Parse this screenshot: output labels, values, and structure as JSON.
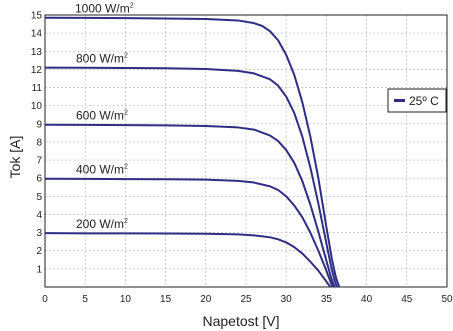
{
  "chart_data": {
    "type": "line",
    "xlabel": "Napetost [V]",
    "ylabel": "Tok [A]",
    "xlim": [
      0,
      50
    ],
    "ylim": [
      0,
      15
    ],
    "x_ticks": [
      0,
      5,
      10,
      15,
      20,
      25,
      30,
      35,
      40,
      45,
      50
    ],
    "y_ticks": [
      1,
      2,
      3,
      4,
      5,
      6,
      7,
      8,
      9,
      10,
      11,
      12,
      13,
      14,
      15
    ],
    "grid": true,
    "legend": {
      "position": "right",
      "entries": [
        "25º C"
      ]
    },
    "colors": {
      "line": "#2e2e86",
      "grid": "#bdbdbd",
      "axis": "#222222"
    },
    "series": [
      {
        "irradiance_label": "1000 W/m",
        "label_superscript": "2",
        "x": [
          0,
          5,
          10,
          15,
          20,
          24,
          26,
          27,
          28,
          29,
          30,
          31,
          32,
          33,
          34,
          35,
          35.7,
          36.2,
          36.6
        ],
        "y": [
          14.85,
          14.84,
          14.83,
          14.81,
          14.78,
          14.7,
          14.55,
          14.4,
          14.1,
          13.6,
          12.8,
          11.7,
          10.2,
          8.3,
          6.0,
          3.3,
          1.5,
          0.5,
          0
        ]
      },
      {
        "irradiance_label": "800 W/m",
        "label_superscript": "2",
        "x": [
          0,
          5,
          10,
          15,
          20,
          24,
          26,
          28,
          29,
          30,
          31,
          32,
          33,
          34,
          35,
          35.6,
          36.0,
          36.3
        ],
        "y": [
          12.1,
          12.09,
          12.08,
          12.06,
          12.02,
          11.92,
          11.78,
          11.45,
          11.1,
          10.5,
          9.6,
          8.3,
          6.6,
          4.6,
          2.4,
          1.1,
          0.4,
          0
        ]
      },
      {
        "irradiance_label": "600 W/m",
        "label_superscript": "2",
        "x": [
          0,
          5,
          10,
          15,
          20,
          24,
          26,
          28,
          29,
          30,
          31,
          32,
          33,
          34,
          35,
          35.6,
          36.0
        ],
        "y": [
          8.95,
          8.94,
          8.93,
          8.91,
          8.88,
          8.8,
          8.68,
          8.35,
          8.05,
          7.55,
          6.85,
          5.85,
          4.55,
          3.05,
          1.45,
          0.5,
          0
        ]
      },
      {
        "irradiance_label": "400 W/m",
        "label_superscript": "2",
        "x": [
          0,
          5,
          10,
          15,
          20,
          24,
          26,
          28,
          29,
          30,
          31,
          32,
          33,
          34,
          35,
          35.5,
          35.8
        ],
        "y": [
          5.97,
          5.96,
          5.95,
          5.94,
          5.92,
          5.85,
          5.76,
          5.55,
          5.35,
          5.0,
          4.5,
          3.85,
          3.0,
          2.0,
          0.9,
          0.3,
          0
        ]
      },
      {
        "irradiance_label": "200 W/m",
        "label_superscript": "2",
        "x": [
          0,
          5,
          10,
          15,
          20,
          24,
          26,
          28,
          29,
          30,
          31,
          32,
          33,
          34,
          35,
          35.5
        ],
        "y": [
          2.97,
          2.96,
          2.96,
          2.95,
          2.94,
          2.9,
          2.85,
          2.74,
          2.63,
          2.46,
          2.2,
          1.85,
          1.4,
          0.9,
          0.3,
          0
        ]
      }
    ]
  }
}
